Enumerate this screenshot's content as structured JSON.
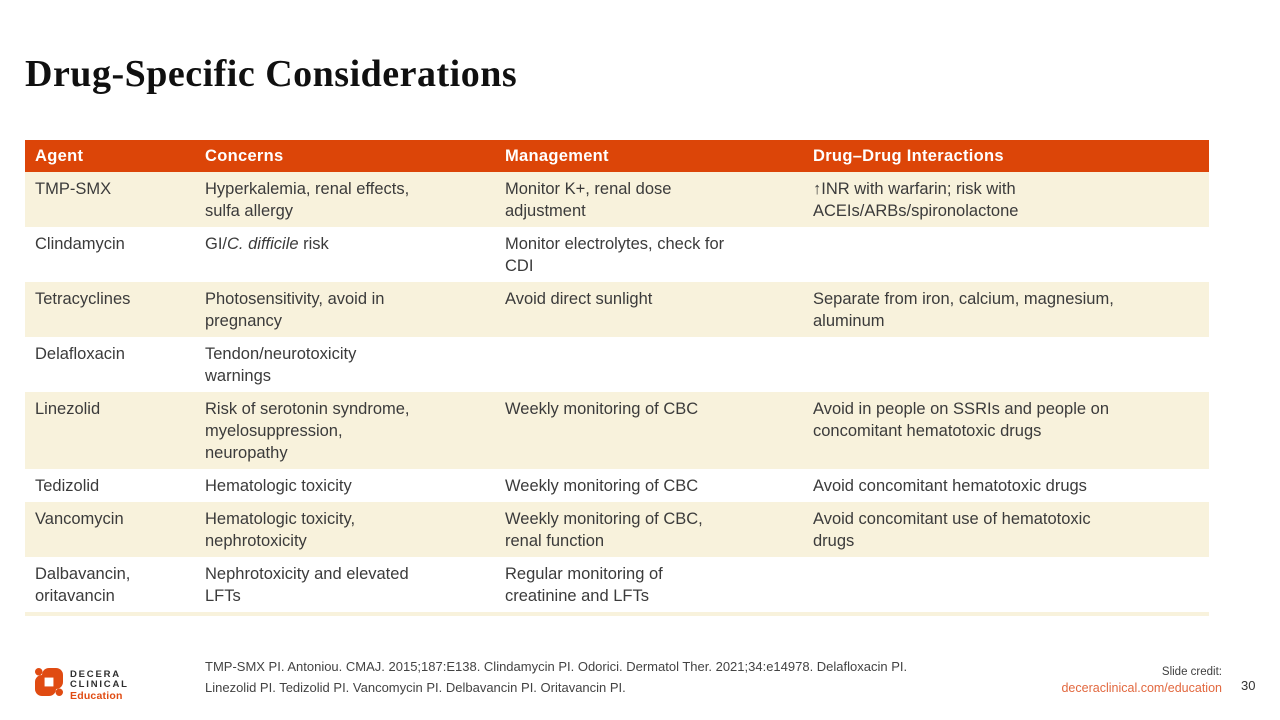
{
  "slide": {
    "title": "Drug-Specific Considerations",
    "page_number": "30"
  },
  "table": {
    "columns": [
      "Agent",
      "Concerns",
      "Management",
      "Drug–Drug Interactions"
    ],
    "column_keys": [
      "agent",
      "concerns",
      "management",
      "interactions"
    ],
    "rows": [
      {
        "cells": [
          "TMP-SMX",
          "Hyperkalemia, renal effects,\nsulfa allergy",
          "Monitor K+, renal dose\nadjustment",
          "↑INR with warfarin; risk with\nACEIs/ARBs/spironolactone"
        ]
      },
      {
        "cells": [
          "Clindamycin",
          [
            {
              "t": "GI/"
            },
            {
              "t": "C. difficile",
              "i": true
            },
            {
              "t": " risk"
            }
          ],
          "Monitor electrolytes, check for\nCDI",
          ""
        ]
      },
      {
        "cells": [
          "Tetracyclines",
          "Photosensitivity, avoid in\npregnancy",
          "Avoid direct sunlight",
          "Separate from iron, calcium, magnesium,\naluminum"
        ]
      },
      {
        "cells": [
          "Delafloxacin",
          "Tendon/neurotoxicity\nwarnings",
          "",
          ""
        ]
      },
      {
        "cells": [
          "Linezolid",
          "Risk of serotonin syndrome,\nmyelosuppression,\nneuropathy",
          "Weekly monitoring of CBC",
          "Avoid in people on SSRIs and people on\nconcomitant hematotoxic drugs"
        ]
      },
      {
        "cells": [
          "Tedizolid",
          "Hematologic toxicity",
          "Weekly monitoring of CBC",
          "Avoid concomitant hematotoxic drugs"
        ]
      },
      {
        "cells": [
          "Vancomycin",
          "Hematologic toxicity,\nnephrotoxicity",
          "Weekly monitoring of CBC,\nrenal function",
          "Avoid concomitant use of hematotoxic\ndrugs"
        ]
      },
      {
        "cells": [
          "Dalbavancin,\noritavancin",
          "Nephrotoxicity and elevated\nLFTs",
          "Regular monitoring of\ncreatinine and LFTs",
          ""
        ]
      }
    ]
  },
  "footer": {
    "logo": {
      "line1": "DECERA",
      "line2": "CLINICAL",
      "line3": "Education"
    },
    "citation": "TMP-SMX PI. Antoniou. CMAJ. 2015;187:E138. Clindamycin PI. Odorici. Dermatol Ther. 2021;34:e14978. Delafloxacin PI.\nLinezolid PI. Tedizolid PI. Vancomycin PI. Delbavancin PI. Oritavancin PI.",
    "credit_label": "Slide credit:",
    "credit_link": "deceraclinical.com/education"
  },
  "colors": {
    "header_bg": "#DC4508",
    "row_stripe_bg": "#F8F2DC",
    "brand_orange": "#E04B12",
    "link_orange": "#E2683F",
    "body_text": "#3B3B3B"
  }
}
